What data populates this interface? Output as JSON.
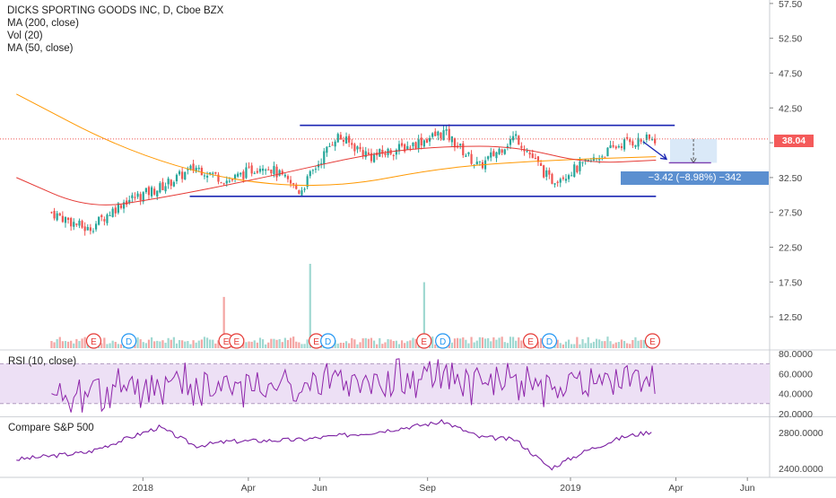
{
  "header": {
    "title": "DICKS SPORTING GOODS INC, D, Cboe BZX",
    "indicators": [
      "MA (200, close)",
      "Vol (20)",
      "MA (50, close)"
    ]
  },
  "last_price": "38.04",
  "measure_label": "−3.42 (−8.98%) −342",
  "rsi_label": "RSI (10, close)",
  "compare_label": "Compare S&P 500",
  "colors": {
    "up": "#26a69a",
    "down": "#ef5350",
    "ma200": "#ff9800",
    "ma50": "#e53935",
    "trendline": "#1b26b3",
    "rsi": "#8e24aa",
    "rsi_band": "#ede0f5",
    "compare": "#7b1fa2",
    "price_line": "#ef5350",
    "event_earnings": "#e53935",
    "event_dividend": "#2196f3"
  },
  "chart_data": [
    {
      "type": "line",
      "panel": "price",
      "title": "DICKS SPORTING GOODS INC, D, Cboe BZX",
      "y_axis_ticks": [
        57.5,
        52.5,
        47.5,
        42.5,
        37.5,
        32.5,
        27.5,
        22.5,
        17.5,
        12.5
      ],
      "x_axis_ticks": [
        "2018",
        "Apr",
        "Jun",
        "Sep",
        "2019",
        "Apr",
        "Jun"
      ],
      "ylim": [
        8.0,
        58.0
      ],
      "series": [
        {
          "name": "Close",
          "x": [
            "2017-10",
            "2017-11",
            "2017-12",
            "2018-01",
            "2018-02",
            "2018-03",
            "2018-04",
            "2018-05",
            "2018-06",
            "2018-07",
            "2018-08",
            "2018-09",
            "2018-10",
            "2018-11",
            "2018-12",
            "2019-01",
            "2019-02",
            "2019-03"
          ],
          "values": [
            27.5,
            25.0,
            29.0,
            31.0,
            34.0,
            32.0,
            34.5,
            30.5,
            38.5,
            35.5,
            37.0,
            39.0,
            34.0,
            38.5,
            32.0,
            34.5,
            37.5,
            38.04
          ]
        },
        {
          "name": "MA (200, close)",
          "x": [
            "2017-09",
            "2017-12",
            "2018-03",
            "2018-06",
            "2018-09",
            "2018-12",
            "2019-03"
          ],
          "values": [
            44.5,
            36.5,
            32.0,
            31.0,
            34.0,
            35.0,
            35.5
          ]
        },
        {
          "name": "MA (50, close)",
          "x": [
            "2017-09",
            "2017-11",
            "2018-01",
            "2018-04",
            "2018-07",
            "2018-09",
            "2018-11",
            "2019-01",
            "2019-03"
          ],
          "values": [
            32.5,
            28.0,
            29.5,
            32.5,
            36.0,
            37.0,
            37.0,
            34.5,
            35.0
          ]
        }
      ],
      "annotations": {
        "resistance": 40.0,
        "support": 29.8,
        "last_price": 38.04,
        "measure_change": -3.42,
        "measure_percent": -8.98,
        "measure_ticks": -342
      }
    },
    {
      "type": "bar",
      "panel": "volume",
      "note": "spikes at 2018-03, 2018-05-25, 2018-08-29",
      "relative_spikes": [
        0.55,
        1.0,
        0.75
      ]
    },
    {
      "type": "line",
      "panel": "rsi",
      "title": "RSI (10, close)",
      "y_axis_ticks": [
        80.0,
        60.0,
        40.0,
        20.0
      ],
      "ylim": [
        18,
        82
      ],
      "band": [
        30,
        70
      ]
    },
    {
      "type": "line",
      "panel": "compare",
      "title": "Compare S&P 500",
      "y_axis_ticks": [
        2800.0,
        2400.0
      ],
      "ylim": [
        2320,
        2960
      ],
      "series": [
        {
          "name": "S&P 500",
          "x": [
            "2017-09",
            "2017-11",
            "2018-01",
            "2018-02",
            "2018-03",
            "2018-05",
            "2018-07",
            "2018-09",
            "2018-10",
            "2018-11",
            "2018-12",
            "2019-01",
            "2019-02",
            "2019-03"
          ],
          "values": [
            2500,
            2580,
            2860,
            2650,
            2700,
            2720,
            2800,
            2920,
            2750,
            2720,
            2400,
            2600,
            2750,
            2820
          ]
        }
      ]
    }
  ]
}
